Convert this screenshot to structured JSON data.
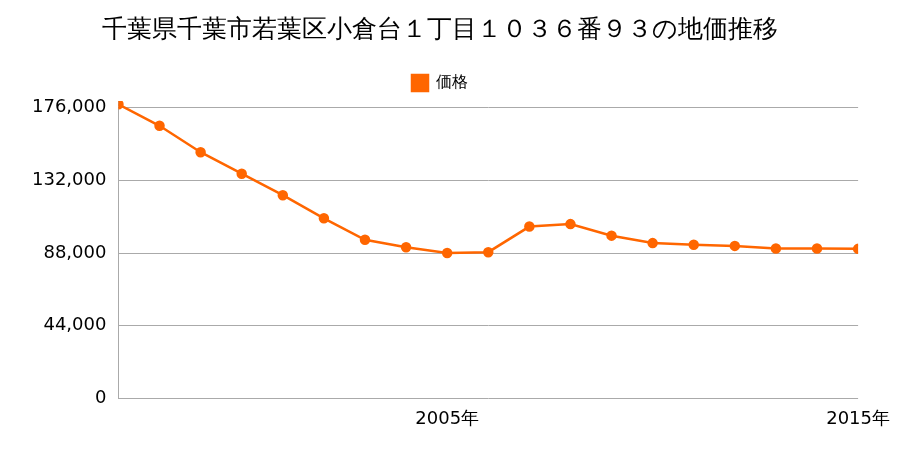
{
  "chart_data": {
    "type": "line",
    "title": "千葉県千葉市若葉区小倉台１丁目１０３６番９３の地価推移",
    "categories": [
      null,
      null,
      null,
      null,
      null,
      null,
      null,
      null,
      "2005年",
      null,
      null,
      null,
      null,
      null,
      null,
      null,
      null,
      null,
      "2015年"
    ],
    "series": [
      {
        "name": "価格",
        "color": "#ff6600",
        "marker": "circle",
        "values": [
          178000,
          165000,
          149000,
          136000,
          123000,
          109000,
          96000,
          91500,
          88000,
          88500,
          104000,
          105500,
          98500,
          94000,
          93000,
          92300,
          90700,
          90700,
          90500
        ]
      }
    ],
    "ylim": [
      0,
      180000
    ],
    "yticks": [
      0,
      {
        "value": 44000,
        "label": "44,000"
      },
      {
        "value": 88000,
        "label": "88,000"
      },
      {
        "value": 132000,
        "label": "132,000"
      },
      {
        "value": 176000,
        "label": "176,000"
      }
    ],
    "grid": "y",
    "legend": "top"
  }
}
